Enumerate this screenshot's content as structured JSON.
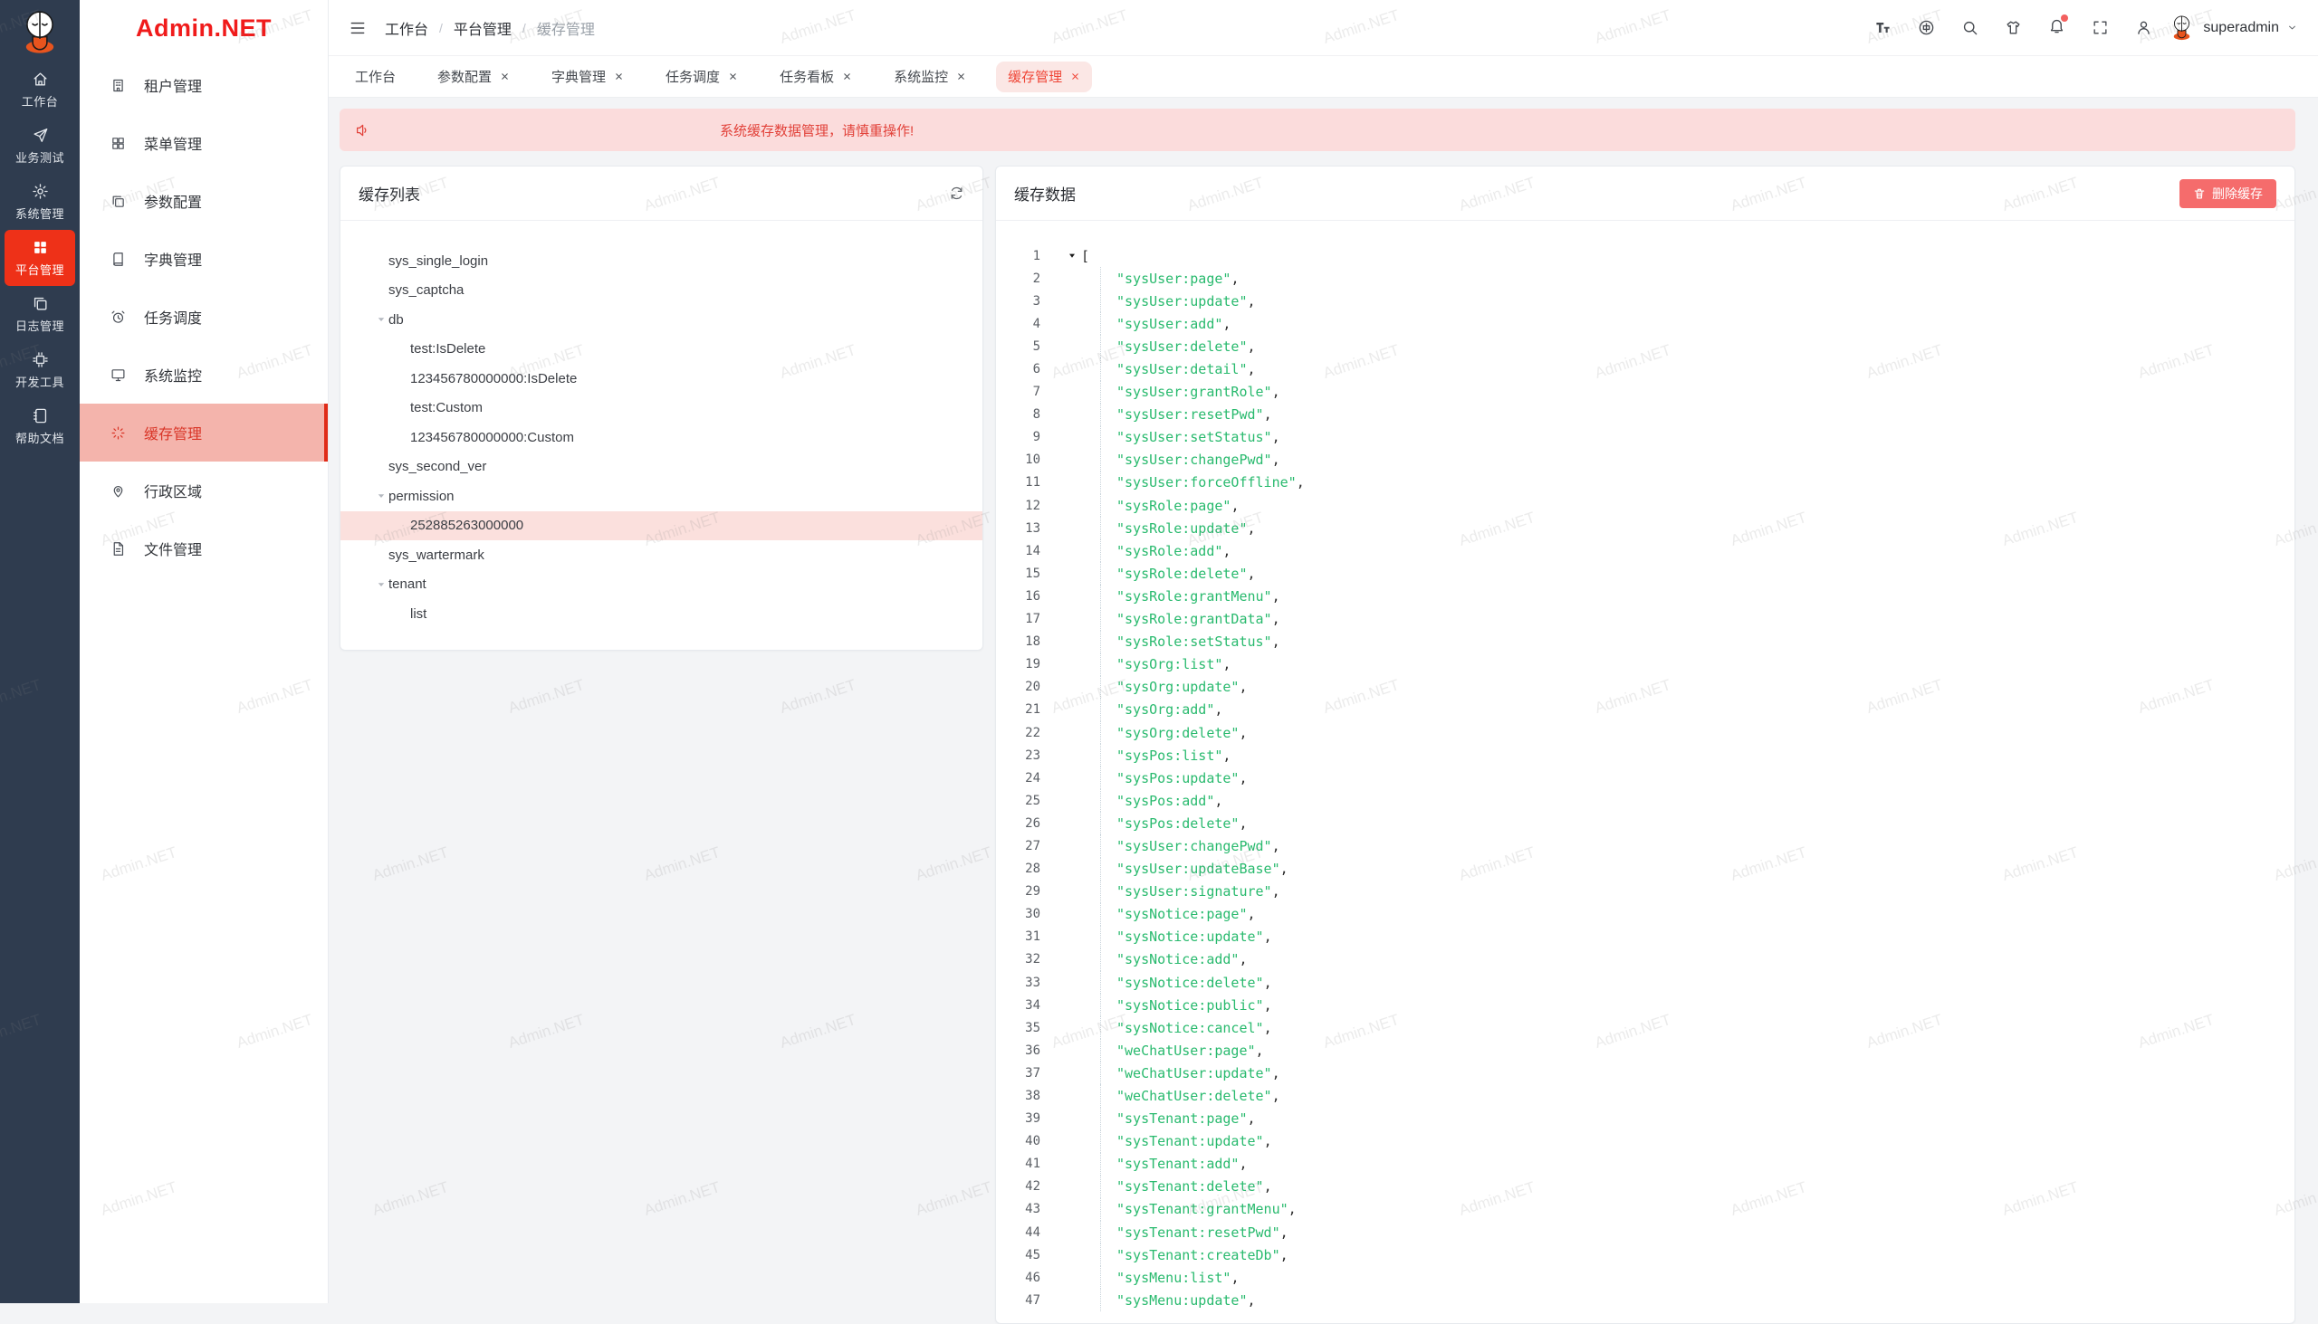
{
  "brand": {
    "name": "Admin.NET"
  },
  "colors": {
    "accent": "#ee3118",
    "danger": "#f56c6c",
    "alert_bg": "#fbdcdc",
    "code_string": "#29ba6e"
  },
  "watermark": {
    "text": "Admin.NET"
  },
  "rail": {
    "items": [
      {
        "label": "工作台",
        "icon": "home",
        "active": false
      },
      {
        "label": "业务测试",
        "icon": "send",
        "active": false
      },
      {
        "label": "系统管理",
        "icon": "gear",
        "active": false
      },
      {
        "label": "平台管理",
        "icon": "grid",
        "active": true
      },
      {
        "label": "日志管理",
        "icon": "copy",
        "active": false
      },
      {
        "label": "开发工具",
        "icon": "chip",
        "active": false
      },
      {
        "label": "帮助文档",
        "icon": "notebook",
        "active": false
      }
    ]
  },
  "sidebar": {
    "items": [
      {
        "label": "租户管理",
        "icon": "building",
        "active": false
      },
      {
        "label": "菜单管理",
        "icon": "grid-o",
        "active": false
      },
      {
        "label": "参数配置",
        "icon": "copy",
        "active": false
      },
      {
        "label": "字典管理",
        "icon": "book",
        "active": false
      },
      {
        "label": "任务调度",
        "icon": "alarm",
        "active": false
      },
      {
        "label": "系统监控",
        "icon": "monitor",
        "active": false
      },
      {
        "label": "缓存管理",
        "icon": "spinner",
        "active": true
      },
      {
        "label": "行政区域",
        "icon": "location",
        "active": false
      },
      {
        "label": "文件管理",
        "icon": "document",
        "active": false
      }
    ]
  },
  "header": {
    "breadcrumb": [
      "工作台",
      "平台管理",
      "缓存管理"
    ],
    "breadcrumb_sep": "/",
    "username": "superadmin"
  },
  "tabs": [
    {
      "label": "工作台",
      "closable": false,
      "active": false
    },
    {
      "label": "参数配置",
      "closable": true,
      "active": false
    },
    {
      "label": "字典管理",
      "closable": true,
      "active": false
    },
    {
      "label": "任务调度",
      "closable": true,
      "active": false
    },
    {
      "label": "任务看板",
      "closable": true,
      "active": false
    },
    {
      "label": "系统监控",
      "closable": true,
      "active": false
    },
    {
      "label": "缓存管理",
      "closable": true,
      "active": true
    }
  ],
  "alert": {
    "text": "系统缓存数据管理，请慎重操作!"
  },
  "cache_list": {
    "title": "缓存列表",
    "tree": [
      {
        "label": "sys_single_login",
        "child": false,
        "caret": false,
        "selected": false
      },
      {
        "label": "sys_captcha",
        "child": false,
        "caret": false,
        "selected": false
      },
      {
        "label": "db",
        "child": false,
        "caret": true,
        "selected": false
      },
      {
        "label": "test:IsDelete",
        "child": true,
        "caret": false,
        "selected": false
      },
      {
        "label": "123456780000000:IsDelete",
        "child": true,
        "caret": false,
        "selected": false
      },
      {
        "label": "test:Custom",
        "child": true,
        "caret": false,
        "selected": false
      },
      {
        "label": "123456780000000:Custom",
        "child": true,
        "caret": false,
        "selected": false
      },
      {
        "label": "sys_second_ver",
        "child": false,
        "caret": false,
        "selected": false
      },
      {
        "label": "permission",
        "child": false,
        "caret": true,
        "selected": false
      },
      {
        "label": "252885263000000",
        "child": true,
        "caret": false,
        "selected": true
      },
      {
        "label": "sys_wartermark",
        "child": false,
        "caret": false,
        "selected": false
      },
      {
        "label": "tenant",
        "child": false,
        "caret": true,
        "selected": false
      },
      {
        "label": "list",
        "child": true,
        "caret": false,
        "selected": false
      }
    ]
  },
  "cache_data": {
    "title": "缓存数据",
    "delete_button": "删除缓存",
    "line1": {
      "n": 1,
      "bracket": "["
    },
    "lines": [
      {
        "n": 2,
        "str": "\"sysUser:page\"",
        "sep": ","
      },
      {
        "n": 3,
        "str": "\"sysUser:update\"",
        "sep": ","
      },
      {
        "n": 4,
        "str": "\"sysUser:add\"",
        "sep": ","
      },
      {
        "n": 5,
        "str": "\"sysUser:delete\"",
        "sep": ","
      },
      {
        "n": 6,
        "str": "\"sysUser:detail\"",
        "sep": ","
      },
      {
        "n": 7,
        "str": "\"sysUser:grantRole\"",
        "sep": ","
      },
      {
        "n": 8,
        "str": "\"sysUser:resetPwd\"",
        "sep": ","
      },
      {
        "n": 9,
        "str": "\"sysUser:setStatus\"",
        "sep": ","
      },
      {
        "n": 10,
        "str": "\"sysUser:changePwd\"",
        "sep": ","
      },
      {
        "n": 11,
        "str": "\"sysUser:forceOffline\"",
        "sep": ","
      },
      {
        "n": 12,
        "str": "\"sysRole:page\"",
        "sep": ","
      },
      {
        "n": 13,
        "str": "\"sysRole:update\"",
        "sep": ","
      },
      {
        "n": 14,
        "str": "\"sysRole:add\"",
        "sep": ","
      },
      {
        "n": 15,
        "str": "\"sysRole:delete\"",
        "sep": ","
      },
      {
        "n": 16,
        "str": "\"sysRole:grantMenu\"",
        "sep": ","
      },
      {
        "n": 17,
        "str": "\"sysRole:grantData\"",
        "sep": ","
      },
      {
        "n": 18,
        "str": "\"sysRole:setStatus\"",
        "sep": ","
      },
      {
        "n": 19,
        "str": "\"sysOrg:list\"",
        "sep": ","
      },
      {
        "n": 20,
        "str": "\"sysOrg:update\"",
        "sep": ","
      },
      {
        "n": 21,
        "str": "\"sysOrg:add\"",
        "sep": ","
      },
      {
        "n": 22,
        "str": "\"sysOrg:delete\"",
        "sep": ","
      },
      {
        "n": 23,
        "str": "\"sysPos:list\"",
        "sep": ","
      },
      {
        "n": 24,
        "str": "\"sysPos:update\"",
        "sep": ","
      },
      {
        "n": 25,
        "str": "\"sysPos:add\"",
        "sep": ","
      },
      {
        "n": 26,
        "str": "\"sysPos:delete\"",
        "sep": ","
      },
      {
        "n": 27,
        "str": "\"sysUser:changePwd\"",
        "sep": ","
      },
      {
        "n": 28,
        "str": "\"sysUser:updateBase\"",
        "sep": ","
      },
      {
        "n": 29,
        "str": "\"sysUser:signature\"",
        "sep": ","
      },
      {
        "n": 30,
        "str": "\"sysNotice:page\"",
        "sep": ","
      },
      {
        "n": 31,
        "str": "\"sysNotice:update\"",
        "sep": ","
      },
      {
        "n": 32,
        "str": "\"sysNotice:add\"",
        "sep": ","
      },
      {
        "n": 33,
        "str": "\"sysNotice:delete\"",
        "sep": ","
      },
      {
        "n": 34,
        "str": "\"sysNotice:public\"",
        "sep": ","
      },
      {
        "n": 35,
        "str": "\"sysNotice:cancel\"",
        "sep": ","
      },
      {
        "n": 36,
        "str": "\"weChatUser:page\"",
        "sep": ","
      },
      {
        "n": 37,
        "str": "\"weChatUser:update\"",
        "sep": ","
      },
      {
        "n": 38,
        "str": "\"weChatUser:delete\"",
        "sep": ","
      },
      {
        "n": 39,
        "str": "\"sysTenant:page\"",
        "sep": ","
      },
      {
        "n": 40,
        "str": "\"sysTenant:update\"",
        "sep": ","
      },
      {
        "n": 41,
        "str": "\"sysTenant:add\"",
        "sep": ","
      },
      {
        "n": 42,
        "str": "\"sysTenant:delete\"",
        "sep": ","
      },
      {
        "n": 43,
        "str": "\"sysTenant:grantMenu\"",
        "sep": ","
      },
      {
        "n": 44,
        "str": "\"sysTenant:resetPwd\"",
        "sep": ","
      },
      {
        "n": 45,
        "str": "\"sysTenant:createDb\"",
        "sep": ","
      },
      {
        "n": 46,
        "str": "\"sysMenu:list\"",
        "sep": ","
      },
      {
        "n": 47,
        "str": "\"sysMenu:update\"",
        "sep": ","
      }
    ]
  }
}
